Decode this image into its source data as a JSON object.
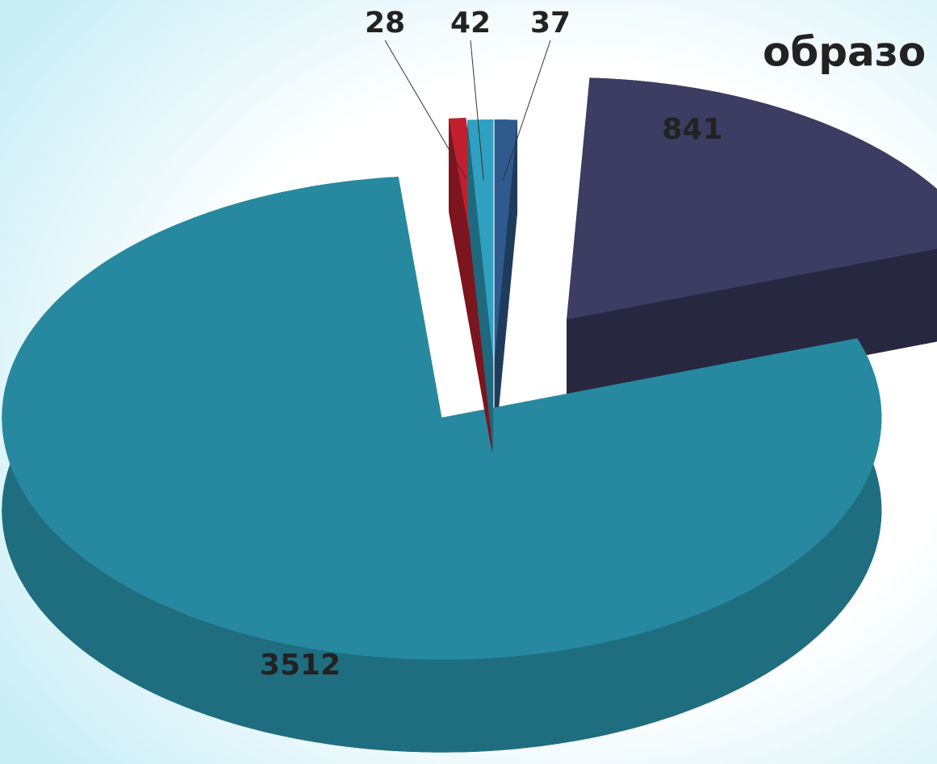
{
  "chart_data": {
    "type": "pie",
    "title": "образо",
    "values": [
      37,
      841,
      3512,
      28,
      42
    ],
    "colors": [
      "#2e5a8e",
      "#3d3c62",
      "#2789a0",
      "#c0202e",
      "#2fa0c0"
    ]
  }
}
